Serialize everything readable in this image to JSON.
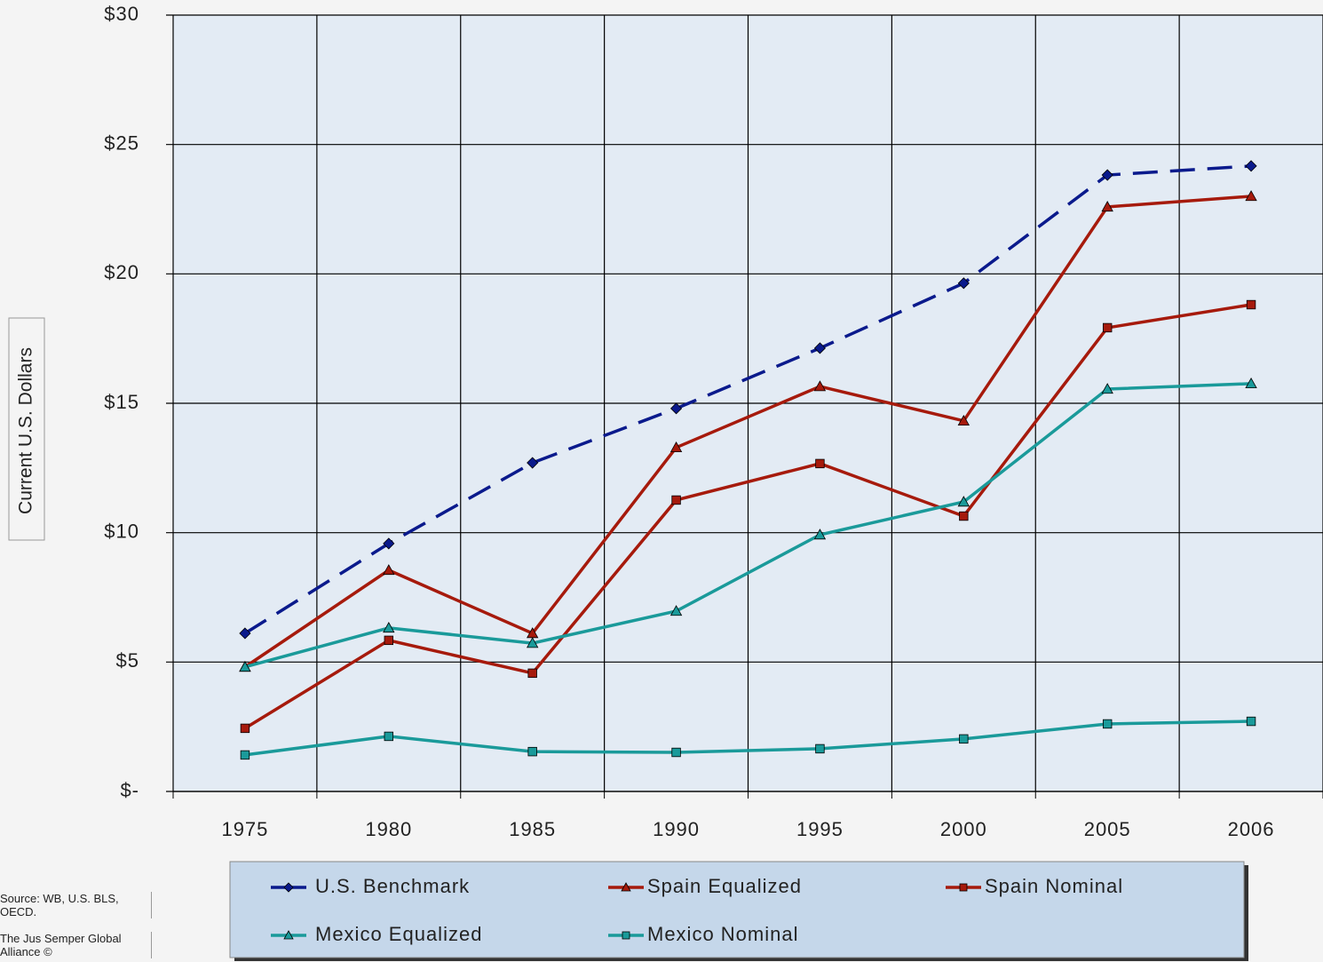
{
  "chart_data": {
    "type": "line",
    "y_label": "Current U.S. Dollars",
    "annotations": [
      "Source: WB, U.S. BLS, OECD.",
      "The Jus Semper Global Alliance ©"
    ],
    "categories": [
      "1975",
      "1980",
      "1985",
      "1990",
      "1995",
      "2000",
      "2005",
      "2006"
    ],
    "series": [
      {
        "name": "U.S. Benchmark",
        "color": "#0a1a8c",
        "marker": "diamond",
        "linestyle": "dashed",
        "values": [
          6.11,
          9.58,
          12.7,
          14.8,
          17.13,
          19.64,
          23.82,
          24.17
        ]
      },
      {
        "name": "Spain Equalized",
        "color": "#a61a0c",
        "marker": "triangle",
        "linestyle": "solid",
        "values": [
          4.81,
          8.55,
          6.11,
          13.29,
          15.65,
          14.32,
          22.59,
          23.0
        ]
      },
      {
        "name": "Spain Nominal",
        "color": "#a61a0c",
        "marker": "square",
        "linestyle": "solid",
        "values": [
          2.44,
          5.84,
          4.57,
          11.26,
          12.67,
          10.64,
          17.92,
          18.81
        ]
      },
      {
        "name": "Mexico Equalized",
        "color": "#1a9a9a",
        "marker": "triangle",
        "linestyle": "solid",
        "values": [
          4.81,
          6.32,
          5.73,
          6.97,
          9.92,
          11.19,
          15.55,
          15.76
        ]
      },
      {
        "name": "Mexico Nominal",
        "color": "#1a9a9a",
        "marker": "square",
        "linestyle": "solid",
        "values": [
          1.41,
          2.13,
          1.54,
          1.51,
          1.65,
          2.03,
          2.61,
          2.71
        ]
      }
    ],
    "ylim": [
      0,
      30
    ],
    "yticks": [
      {
        "value": 0,
        "label": "$-"
      },
      {
        "value": 5,
        "label": "$5"
      },
      {
        "value": 10,
        "label": "$10"
      },
      {
        "value": 15,
        "label": "$15"
      },
      {
        "value": 20,
        "label": "$20"
      },
      {
        "value": 25,
        "label": "$25"
      },
      {
        "value": 30,
        "label": "$30"
      }
    ],
    "grid": true,
    "legend": "bottom"
  }
}
